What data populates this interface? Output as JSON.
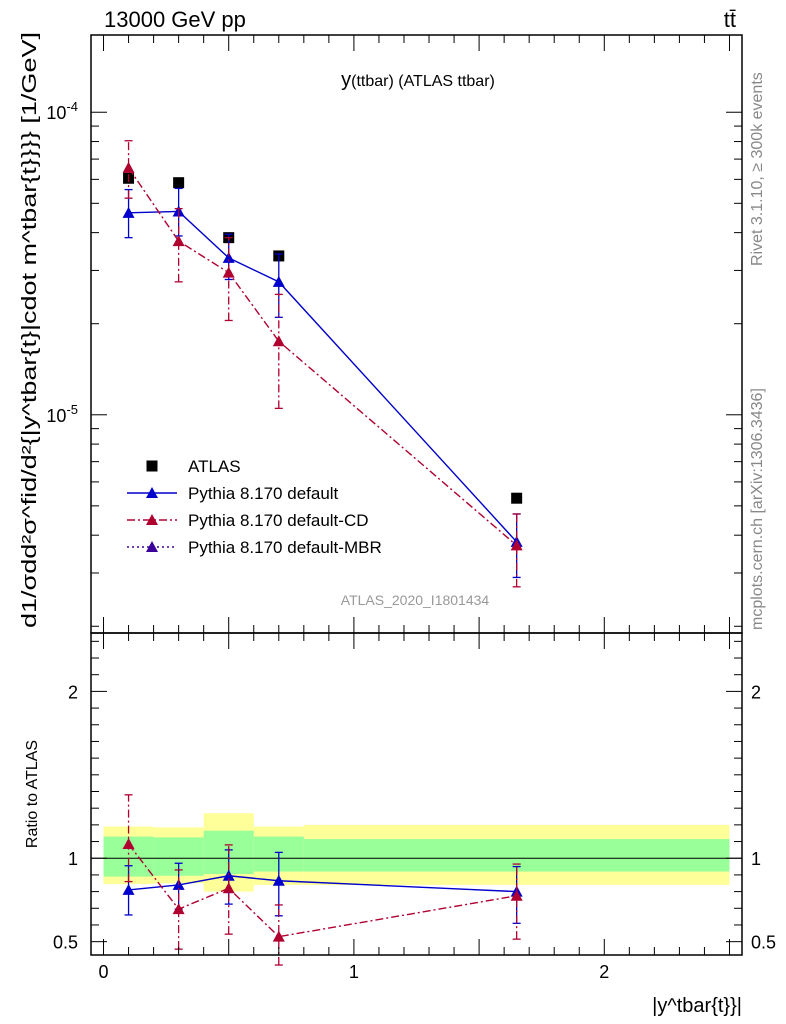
{
  "header": {
    "energy_label": "13000 GeV pp",
    "process_label": "tt̄"
  },
  "side_labels": {
    "rivet": "Rivet 3.1.10, ≥ 300k events",
    "mcplots": "mcplots.cern.ch [arXiv:1306.3436]"
  },
  "chart_data": [
    {
      "type": "scatter",
      "panel": "main",
      "title": "y(ttbar) (ATLAS ttbar)",
      "title_main": "y",
      "title_sub": "(ttbar) (ATLAS ttbar)",
      "ylabel": "d1/σdd²σ^fid/d²{|y^tbar{t}|cdot m^tbar{t}}}} [1/GeV]",
      "xlabel": "|y^tbar{t}}|",
      "y_scale": "log",
      "xlim": [
        -0.05,
        2.55
      ],
      "ylim": [
        1.9e-06,
        0.00018
      ],
      "y_tick_labels": [
        "10^-5",
        "10^-4"
      ],
      "watermark": "ATLAS_2020_I1801434",
      "legend_position": "lower-left",
      "series": [
        {
          "name": "ATLAS",
          "marker": "square",
          "color": "#000000",
          "x": [
            0.1,
            0.3,
            0.5,
            0.7,
            1.65
          ],
          "y": [
            6.05e-05,
            5.85e-05,
            3.85e-05,
            3.35e-05,
            5.3e-06
          ]
        },
        {
          "name": "Pythia 8.170 default",
          "marker": "triangle",
          "color": "#0000cc",
          "line": "solid",
          "x": [
            0.1,
            0.3,
            0.5,
            0.7,
            1.65
          ],
          "y": [
            4.65e-05,
            4.7e-05,
            3.3e-05,
            2.75e-05,
            3.8e-06
          ],
          "err_low": [
            3.85e-05,
            3.9e-05,
            2.8e-05,
            2.1e-05,
            2.9e-06
          ],
          "err_high": [
            5.55e-05,
            5.6e-05,
            3.95e-05,
            3.4e-05,
            4.7e-06
          ]
        },
        {
          "name": "Pythia 8.170 default-CD",
          "marker": "triangle",
          "color": "#b00030",
          "line": "dashdot",
          "x": [
            0.1,
            0.3,
            0.5,
            0.7,
            1.65
          ],
          "y": [
            6.55e-05,
            3.75e-05,
            2.95e-05,
            1.75e-05,
            3.7e-06
          ],
          "err_low": [
            5.2e-05,
            2.75e-05,
            2.05e-05,
            1.05e-05,
            2.7e-06
          ],
          "err_high": [
            8.05e-05,
            4.8e-05,
            3.85e-05,
            2.5e-05,
            4.7e-06
          ]
        },
        {
          "name": "Pythia 8.170 default-MBR",
          "marker": "triangle",
          "color": "#3a0099",
          "line": "dotted",
          "x": [],
          "y": []
        }
      ]
    },
    {
      "type": "scatter",
      "panel": "ratio",
      "ylabel": "Ratio to ATLAS",
      "xlim": [
        -0.05,
        2.55
      ],
      "ylim": [
        0.42,
        2.35
      ],
      "y_ticks": [
        0.5,
        1,
        2
      ],
      "y_tick_labels": [
        "0.5",
        "1",
        "2"
      ],
      "x_ticks": [
        0,
        1,
        2
      ],
      "x_tick_labels": [
        "0",
        "1",
        "2"
      ],
      "bands": [
        {
          "x0": 0.0,
          "x1": 0.2,
          "yellow": [
            0.845,
            1.19
          ],
          "green": [
            0.89,
            1.13
          ]
        },
        {
          "x0": 0.2,
          "x1": 0.4,
          "yellow": [
            0.85,
            1.185
          ],
          "green": [
            0.895,
            1.125
          ]
        },
        {
          "x0": 0.4,
          "x1": 0.6,
          "yellow": [
            0.8,
            1.27
          ],
          "green": [
            0.905,
            1.165
          ]
        },
        {
          "x0": 0.6,
          "x1": 0.8,
          "yellow": [
            0.84,
            1.19
          ],
          "green": [
            0.92,
            1.13
          ]
        },
        {
          "x0": 0.8,
          "x1": 2.5,
          "yellow": [
            0.84,
            1.2
          ],
          "green": [
            0.92,
            1.115
          ]
        }
      ],
      "series": [
        {
          "name": "Pythia 8.170 default",
          "color": "#0000cc",
          "line": "solid",
          "x": [
            0.1,
            0.3,
            0.5,
            0.7,
            1.65
          ],
          "y": [
            0.81,
            0.84,
            0.895,
            0.865,
            0.8
          ],
          "err_low": [
            0.66,
            0.695,
            0.725,
            0.655,
            0.61
          ],
          "err_high": [
            0.955,
            0.97,
            1.05,
            1.035,
            0.95
          ]
        },
        {
          "name": "Pythia 8.170 default-CD",
          "color": "#b00030",
          "line": "dashdot",
          "x": [
            0.1,
            0.3,
            0.5,
            0.7,
            1.65
          ],
          "y": [
            1.085,
            0.695,
            0.82,
            0.53,
            0.775
          ],
          "err_low": [
            0.86,
            0.455,
            0.545,
            0.36,
            0.515
          ],
          "err_high": [
            1.38,
            0.93,
            1.08,
            0.72,
            0.965
          ]
        }
      ]
    }
  ]
}
